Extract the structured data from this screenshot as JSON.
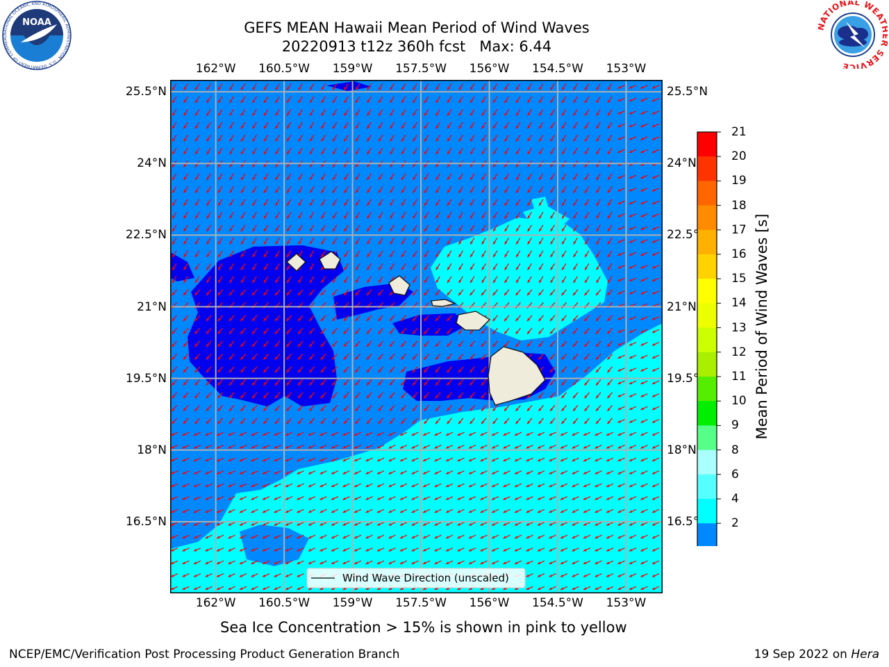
{
  "title": {
    "line1": "GEFS MEAN Hawaii Mean Period of Wind Waves",
    "line2": "20220913 t12z 360h fcst   Max: 6.44"
  },
  "map": {
    "lon_ticks": [
      "162°W",
      "160.5°W",
      "159°W",
      "157.5°W",
      "156°W",
      "154.5°W",
      "153°W"
    ],
    "lat_ticks": [
      "25.5°N",
      "24°N",
      "22.5°N",
      "21°N",
      "19.5°N",
      "18°N",
      "16.5°N"
    ],
    "lon_values": [
      -162,
      -160.5,
      -159,
      -157.5,
      -156,
      -154.5,
      -153
    ],
    "lat_values": [
      25.5,
      24,
      22.5,
      21,
      19.5,
      18,
      16.5
    ],
    "lon_range": [
      -163,
      -152.2
    ],
    "lat_range": [
      15,
      25.75
    ],
    "legend_text": "Wind Wave Direction (unscaled)",
    "colors": {
      "land": "#efecdc",
      "arrow": "#ff0000",
      "grid": "#b0b0b0"
    }
  },
  "colorbar": {
    "label": "Mean Period of Wind Waves [s]",
    "ticks": [
      "21",
      "20",
      "19",
      "18",
      "17",
      "16",
      "15",
      "14",
      "13",
      "12",
      "11",
      "10",
      "9",
      "8",
      "6",
      "4",
      "2"
    ],
    "colors": [
      "#ff0000",
      "#ff3300",
      "#ff6600",
      "#ff8c00",
      "#ffb000",
      "#ffd200",
      "#ffff00",
      "#eeff00",
      "#ccff00",
      "#aaee00",
      "#55ee00",
      "#00ee00",
      "#55ff88",
      "#aaffff",
      "#55ffff",
      "#00ffff",
      "#0088ff"
    ],
    "extend_color": "#0000ee"
  },
  "note": "Sea Ice Concentration > 15% is shown in pink to yellow",
  "footer": {
    "left": "NCEP/EMC/Verification Post Processing Product Generation Branch",
    "right_date": "19 Sep 2022 on ",
    "right_host": "Hera"
  },
  "logos": {
    "left_text": "NOAA",
    "left_ring_text": "NATIONAL OCEANIC AND ATMOSPHERIC ADMINISTRATION · U.S. DEPARTMENT OF COMMERCE",
    "right_ring_text": "NATIONAL WEATHER SERVICE"
  }
}
